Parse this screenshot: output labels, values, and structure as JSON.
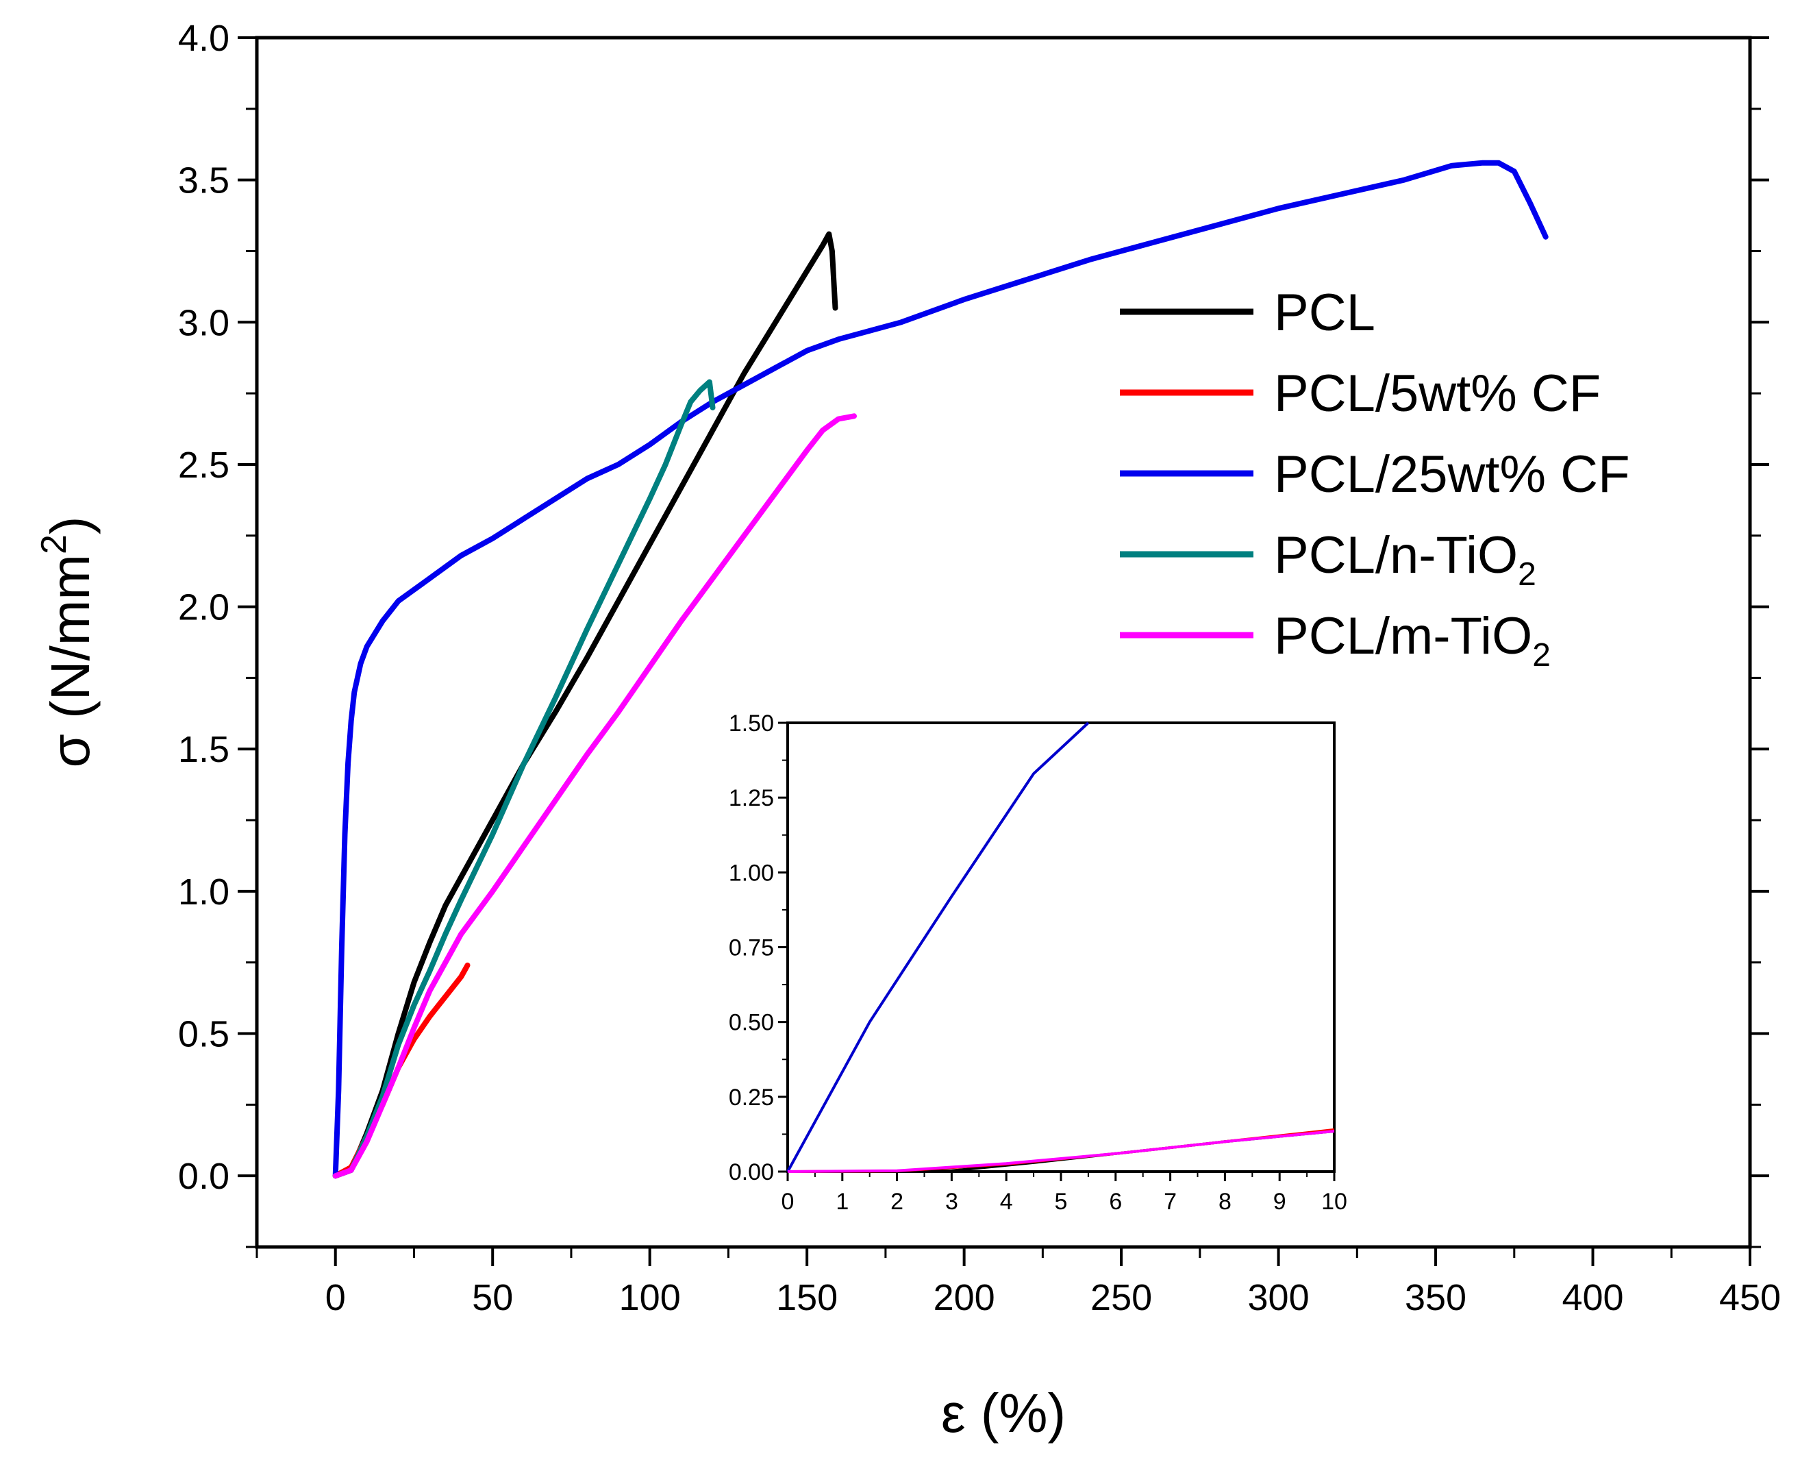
{
  "chart_data": {
    "type": "line",
    "title": "",
    "xlabel": "ε (%)",
    "ylabel_prefix": "σ (N/mm",
    "ylabel_sup": "2",
    "ylabel_suffix": ")",
    "xlim": [
      -25,
      450
    ],
    "ylim": [
      -0.25,
      4.0
    ],
    "xticks": [
      0,
      50,
      100,
      150,
      200,
      250,
      300,
      350,
      400,
      450
    ],
    "yticks": [
      0.0,
      0.5,
      1.0,
      1.5,
      2.0,
      2.5,
      3.0,
      3.5,
      4.0
    ],
    "xtick_labels": [
      "0",
      "50",
      "100",
      "150",
      "200",
      "250",
      "300",
      "350",
      "400",
      "450"
    ],
    "ytick_labels": [
      "0.0",
      "0.5",
      "1.0",
      "1.5",
      "2.0",
      "2.5",
      "3.0",
      "3.5",
      "4.0"
    ],
    "legend_position": "top-right",
    "series": [
      {
        "name": "PCL",
        "label_main": "PCL",
        "label_sub": "",
        "label_tail": "",
        "color": "#000000",
        "points": [
          [
            0,
            0
          ],
          [
            5,
            0.02
          ],
          [
            10,
            0.15
          ],
          [
            15,
            0.3
          ],
          [
            20,
            0.5
          ],
          [
            25,
            0.68
          ],
          [
            30,
            0.82
          ],
          [
            35,
            0.95
          ],
          [
            40,
            1.05
          ],
          [
            50,
            1.25
          ],
          [
            60,
            1.45
          ],
          [
            70,
            1.63
          ],
          [
            80,
            1.82
          ],
          [
            90,
            2.02
          ],
          [
            100,
            2.22
          ],
          [
            110,
            2.42
          ],
          [
            120,
            2.62
          ],
          [
            130,
            2.82
          ],
          [
            140,
            3.0
          ],
          [
            150,
            3.18
          ],
          [
            155,
            3.27
          ],
          [
            157,
            3.31
          ],
          [
            158,
            3.25
          ],
          [
            159,
            3.05
          ]
        ]
      },
      {
        "name": "PCL/5wt% CF",
        "label_main": "PCL/5wt% CF",
        "label_sub": "",
        "label_tail": "",
        "color": "#ff0000",
        "points": [
          [
            0,
            0
          ],
          [
            5,
            0.03
          ],
          [
            10,
            0.14
          ],
          [
            15,
            0.25
          ],
          [
            20,
            0.38
          ],
          [
            25,
            0.48
          ],
          [
            30,
            0.56
          ],
          [
            35,
            0.63
          ],
          [
            40,
            0.7
          ],
          [
            42,
            0.74
          ]
        ]
      },
      {
        "name": "PCL/25wt% CF",
        "label_main": "PCL/25wt% CF",
        "label_sub": "",
        "label_tail": "",
        "color": "#0000ee",
        "points": [
          [
            0,
            0
          ],
          [
            1,
            0.3
          ],
          [
            2,
            0.8
          ],
          [
            3,
            1.2
          ],
          [
            4,
            1.45
          ],
          [
            5,
            1.6
          ],
          [
            6,
            1.7
          ],
          [
            8,
            1.8
          ],
          [
            10,
            1.86
          ],
          [
            15,
            1.95
          ],
          [
            20,
            2.02
          ],
          [
            30,
            2.1
          ],
          [
            40,
            2.18
          ],
          [
            50,
            2.24
          ],
          [
            60,
            2.31
          ],
          [
            70,
            2.38
          ],
          [
            80,
            2.45
          ],
          [
            90,
            2.5
          ],
          [
            100,
            2.57
          ],
          [
            110,
            2.65
          ],
          [
            120,
            2.72
          ],
          [
            130,
            2.78
          ],
          [
            140,
            2.84
          ],
          [
            150,
            2.9
          ],
          [
            160,
            2.94
          ],
          [
            180,
            3.0
          ],
          [
            200,
            3.08
          ],
          [
            220,
            3.15
          ],
          [
            240,
            3.22
          ],
          [
            260,
            3.28
          ],
          [
            280,
            3.34
          ],
          [
            300,
            3.4
          ],
          [
            320,
            3.45
          ],
          [
            340,
            3.5
          ],
          [
            355,
            3.55
          ],
          [
            365,
            3.56
          ],
          [
            370,
            3.56
          ],
          [
            375,
            3.53
          ],
          [
            380,
            3.42
          ],
          [
            385,
            3.3
          ]
        ]
      },
      {
        "name": "PCL/n-TiO2",
        "label_main": "PCL/n-TiO",
        "label_sub": "2",
        "label_tail": "",
        "color": "#008080",
        "points": [
          [
            0,
            0
          ],
          [
            5,
            0.02
          ],
          [
            10,
            0.14
          ],
          [
            15,
            0.28
          ],
          [
            20,
            0.46
          ],
          [
            25,
            0.6
          ],
          [
            30,
            0.72
          ],
          [
            35,
            0.85
          ],
          [
            40,
            0.97
          ],
          [
            50,
            1.2
          ],
          [
            60,
            1.45
          ],
          [
            70,
            1.68
          ],
          [
            80,
            1.92
          ],
          [
            90,
            2.15
          ],
          [
            100,
            2.38
          ],
          [
            105,
            2.5
          ],
          [
            110,
            2.64
          ],
          [
            113,
            2.72
          ],
          [
            116,
            2.76
          ],
          [
            119,
            2.79
          ],
          [
            120,
            2.7
          ]
        ]
      },
      {
        "name": "PCL/m-TiO2",
        "label_main": "PCL/m-TiO",
        "label_sub": "2",
        "label_tail": "",
        "color": "#ff00ff",
        "points": [
          [
            0,
            0
          ],
          [
            5,
            0.02
          ],
          [
            10,
            0.12
          ],
          [
            15,
            0.25
          ],
          [
            20,
            0.38
          ],
          [
            25,
            0.52
          ],
          [
            30,
            0.65
          ],
          [
            35,
            0.75
          ],
          [
            40,
            0.85
          ],
          [
            50,
            1.0
          ],
          [
            60,
            1.16
          ],
          [
            70,
            1.32
          ],
          [
            80,
            1.48
          ],
          [
            90,
            1.63
          ],
          [
            100,
            1.79
          ],
          [
            110,
            1.95
          ],
          [
            120,
            2.1
          ],
          [
            130,
            2.25
          ],
          [
            140,
            2.4
          ],
          [
            150,
            2.55
          ],
          [
            155,
            2.62
          ],
          [
            160,
            2.66
          ],
          [
            165,
            2.67
          ]
        ]
      }
    ],
    "inset": {
      "xlim": [
        0,
        10
      ],
      "ylim": [
        0,
        1.5
      ],
      "xticks": [
        0,
        1,
        2,
        3,
        4,
        5,
        6,
        7,
        8,
        9,
        10
      ],
      "yticks": [
        0,
        0.25,
        0.5,
        0.75,
        1.0,
        1.25,
        1.5
      ],
      "xtick_labels": [
        "0",
        "1",
        "2",
        "3",
        "4",
        "5",
        "6",
        "7",
        "8",
        "9",
        "10"
      ],
      "ytick_labels": [
        "0.00",
        "0.25",
        "0.50",
        "0.75",
        "1.00",
        "1.25",
        "1.50"
      ],
      "series": [
        {
          "name": "PCL/25wt% CF",
          "color": "#0000cc",
          "points": [
            [
              0,
              0
            ],
            [
              1.5,
              0.5
            ],
            [
              3,
              0.92
            ],
            [
              4.5,
              1.33
            ],
            [
              5.5,
              1.5
            ]
          ]
        },
        {
          "name": "PCL",
          "color": "#000000",
          "points": [
            [
              0,
              0
            ],
            [
              2,
              0
            ],
            [
              3,
              0.003
            ],
            [
              4.5,
              0.03
            ],
            [
              6,
              0.06
            ],
            [
              8,
              0.1
            ],
            [
              10,
              0.135
            ]
          ]
        },
        {
          "name": "PCL/5wt% CF",
          "color": "#ff0000",
          "points": [
            [
              0,
              0
            ],
            [
              2,
              0.002
            ],
            [
              4,
              0.025
            ],
            [
              6,
              0.06
            ],
            [
              8,
              0.1
            ],
            [
              10,
              0.14
            ]
          ]
        },
        {
          "name": "PCL/m-TiO2",
          "color": "#ff00ff",
          "points": [
            [
              0,
              0
            ],
            [
              2,
              0.003
            ],
            [
              4,
              0.027
            ],
            [
              6,
              0.06
            ],
            [
              8,
              0.1
            ],
            [
              10,
              0.135
            ]
          ]
        }
      ]
    }
  }
}
